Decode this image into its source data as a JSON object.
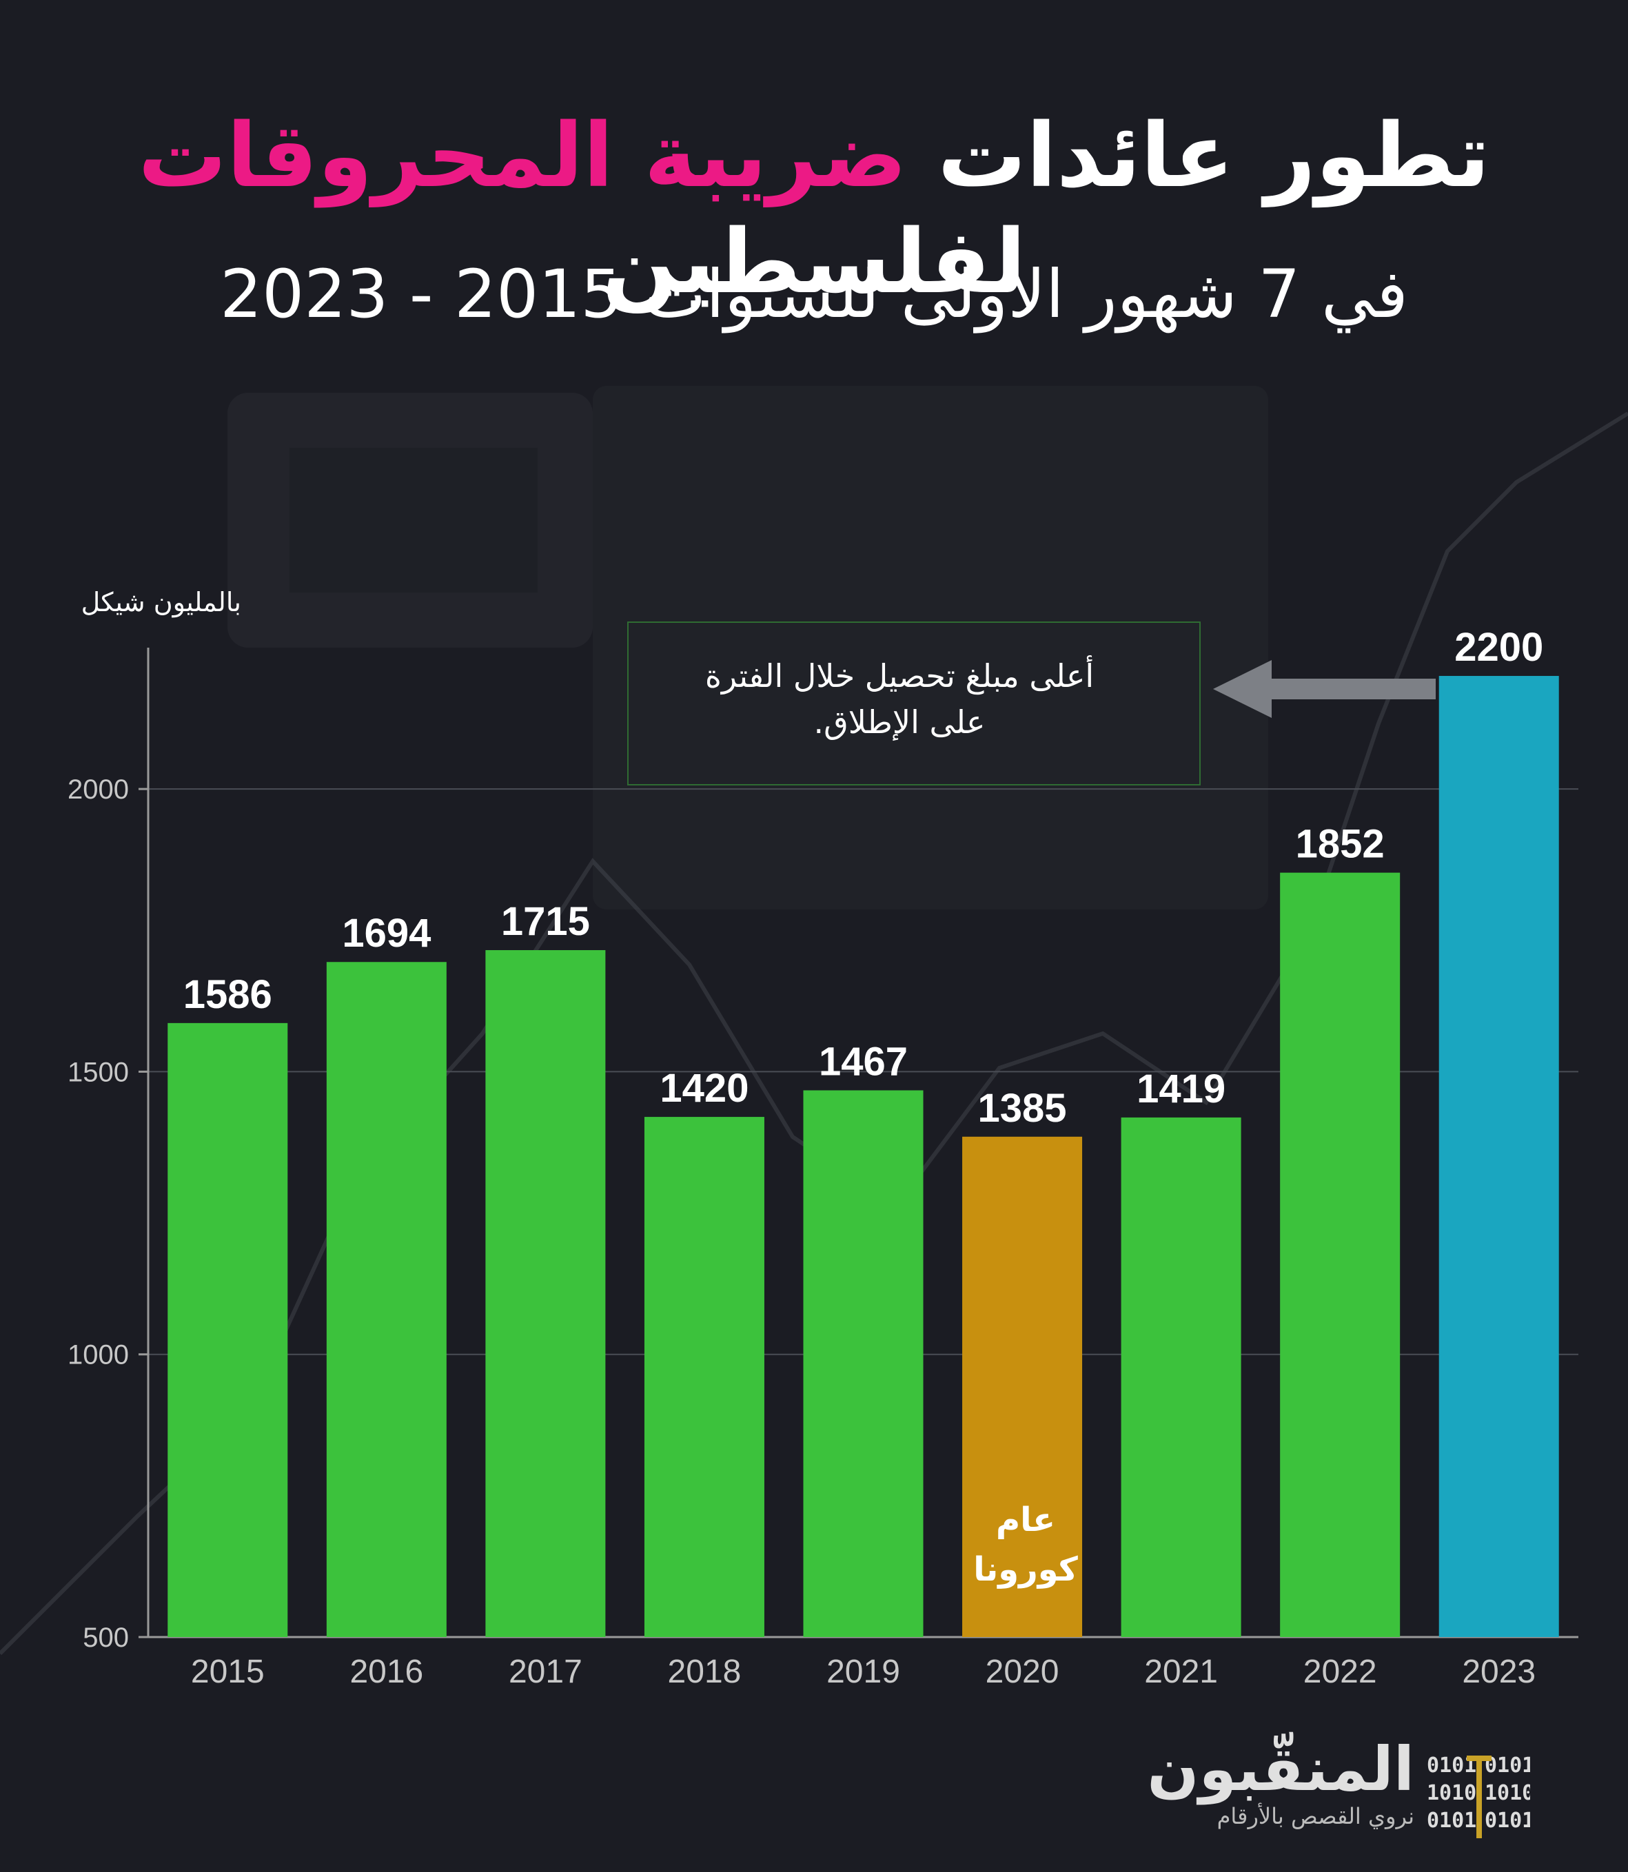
{
  "title": {
    "line1_before": "تطور عائدات ",
    "line1_accent": "ضريبة المحروقات",
    "line1_after": " لفلسطين",
    "subtitle": "في 7 شهور الأولى للسنوات 2015 - 2023"
  },
  "colors": {
    "accent": "#ec1a85",
    "bar_default": "#3cc23c",
    "bar_corona": "#c8900f",
    "bar_highlight": "#1aa6c0",
    "background": "#1b1c23"
  },
  "chart_data": {
    "type": "bar",
    "ylabel": "بالمليون شيكل",
    "categories": [
      "2015",
      "2016",
      "2017",
      "2018",
      "2019",
      "2020",
      "2021",
      "2022",
      "2023"
    ],
    "values": [
      1586,
      1694,
      1715,
      1420,
      1467,
      1385,
      1419,
      1852,
      2200
    ],
    "bar_colors": [
      "#3cc23c",
      "#3cc23c",
      "#3cc23c",
      "#3cc23c",
      "#3cc23c",
      "#c8900f",
      "#3cc23c",
      "#3cc23c",
      "#1aa6c0"
    ],
    "ylim": [
      500,
      2250
    ],
    "yticks": [
      500,
      1000,
      1500,
      2000
    ],
    "grid": true,
    "annotations": {
      "highest": "أعلى مبلغ تحصيل خلال الفترة على الإطلاق.",
      "corona": "عام كورونا"
    }
  },
  "brand": {
    "name": "المنقّبون",
    "tagline": "نروي القصص بالأرقام",
    "logo_binary_left": [
      "0101",
      "1010",
      "0101"
    ],
    "logo_binary_right": [
      "0101",
      "1010",
      "0101"
    ]
  }
}
